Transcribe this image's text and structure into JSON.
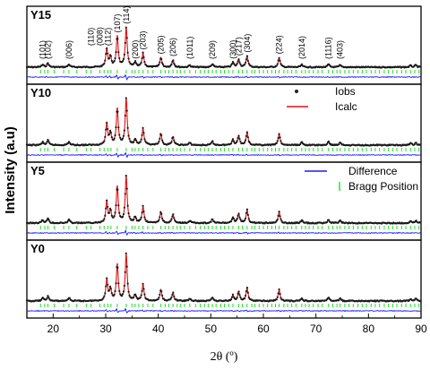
{
  "chart_data": {
    "type": "line",
    "xlabel": "2θ (º)",
    "ylabel": "Intensity (a.u)",
    "xlim": [
      15,
      90
    ],
    "x_ticks": [
      20,
      30,
      40,
      50,
      60,
      70,
      80,
      90
    ],
    "panels": [
      {
        "label": "Y15"
      },
      {
        "label": "Y10"
      },
      {
        "label": "Y5"
      },
      {
        "label": "Y0"
      }
    ],
    "legend": [
      {
        "name": "Iobs",
        "color": "#222222",
        "marker": "dot"
      },
      {
        "name": "Icalc",
        "color": "#e01010",
        "marker": "line"
      },
      {
        "name": "Difference",
        "color": "#1a1aff",
        "marker": "line"
      },
      {
        "name": "Bragg Position",
        "color": "#22dd22",
        "marker": "tick"
      }
    ],
    "reflections": [
      {
        "hkl": "(101)",
        "x": 18.0
      },
      {
        "hkl": "(102)",
        "x": 19.0
      },
      {
        "hkl": "(006)",
        "x": 23.0
      },
      {
        "hkl": "(110)",
        "x": 27.2
      },
      {
        "hkl": "(008)",
        "x": 28.9
      },
      {
        "hkl": "(112)",
        "x": 30.4
      },
      {
        "hkl": "(107)",
        "x": 32.2
      },
      {
        "hkl": "(114)",
        "x": 33.9
      },
      {
        "hkl": "(200)",
        "x": 35.6
      },
      {
        "hkl": "(203)",
        "x": 37.1
      },
      {
        "hkl": "(205)",
        "x": 40.5
      },
      {
        "hkl": "(206)",
        "x": 42.8
      },
      {
        "hkl": "(1011)",
        "x": 46.0
      },
      {
        "hkl": "(209)",
        "x": 50.3
      },
      {
        "hkl": "(300)",
        "x": 54.2
      },
      {
        "hkl": "(217)",
        "x": 55.3
      },
      {
        "hkl": "(304)",
        "x": 56.9
      },
      {
        "hkl": "(224)",
        "x": 63.0
      },
      {
        "hkl": "(2014)",
        "x": 67.3
      },
      {
        "hkl": "(1116)",
        "x": 72.4
      },
      {
        "hkl": "(403)",
        "x": 74.6
      }
    ],
    "peaks": [
      {
        "x": 18.0,
        "h": 0.06
      },
      {
        "x": 19.0,
        "h": 0.1
      },
      {
        "x": 23.0,
        "h": 0.07
      },
      {
        "x": 30.2,
        "h": 0.45
      },
      {
        "x": 30.9,
        "h": 0.25
      },
      {
        "x": 32.2,
        "h": 0.78
      },
      {
        "x": 33.9,
        "h": 1.0
      },
      {
        "x": 35.6,
        "h": 0.12
      },
      {
        "x": 37.1,
        "h": 0.35
      },
      {
        "x": 40.5,
        "h": 0.24
      },
      {
        "x": 42.8,
        "h": 0.18
      },
      {
        "x": 46.0,
        "h": 0.05
      },
      {
        "x": 50.3,
        "h": 0.08
      },
      {
        "x": 54.2,
        "h": 0.12
      },
      {
        "x": 55.3,
        "h": 0.2
      },
      {
        "x": 56.9,
        "h": 0.28
      },
      {
        "x": 63.0,
        "h": 0.24
      },
      {
        "x": 67.3,
        "h": 0.06
      },
      {
        "x": 72.4,
        "h": 0.07
      },
      {
        "x": 74.6,
        "h": 0.05
      },
      {
        "x": 88.0,
        "h": 0.04
      },
      {
        "x": 89.0,
        "h": 0.05
      }
    ],
    "bragg_positions": [
      17.6,
      18.4,
      19.0,
      20.2,
      22.0,
      23.0,
      24.5,
      26.3,
      27.2,
      28.9,
      29.7,
      30.4,
      31.0,
      32.2,
      33.9,
      35.0,
      35.6,
      36.3,
      37.1,
      38.0,
      39.0,
      40.5,
      41.3,
      42.0,
      42.8,
      43.6,
      44.2,
      45.0,
      46.0,
      47.1,
      48.0,
      48.8,
      49.5,
      50.3,
      51.0,
      51.9,
      52.6,
      53.4,
      54.2,
      55.3,
      56.0,
      56.9,
      57.8,
      58.4,
      59.2,
      60.0,
      60.8,
      61.6,
      62.3,
      63.0,
      63.9,
      64.6,
      65.4,
      66.2,
      67.3,
      68.0,
      68.7,
      69.5,
      70.4,
      71.2,
      72.4,
      73.2,
      74.0,
      74.6,
      75.5,
      76.3,
      77.1,
      78.0,
      78.8,
      79.6,
      80.5,
      81.3,
      82.1,
      83.0,
      83.8,
      84.6,
      85.4,
      86.3,
      87.1,
      88.0,
      88.8,
      89.6
    ]
  }
}
